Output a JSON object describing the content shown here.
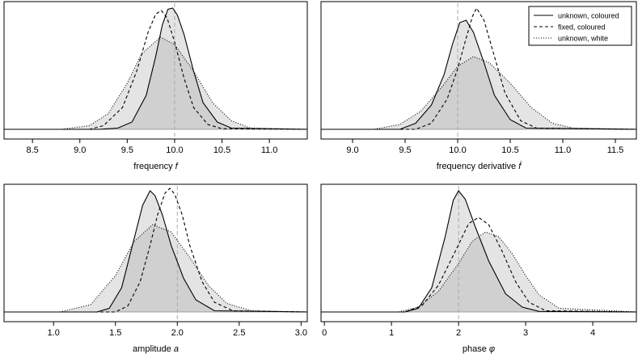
{
  "legend": {
    "entries": [
      {
        "label": "unknown, coloured",
        "style": "solid"
      },
      {
        "label": "fixed, coloured",
        "style": "dashed"
      },
      {
        "label": "unknown, white",
        "style": "dotted"
      }
    ],
    "placement": "top-right of top-right panel"
  },
  "colors": {
    "fill_unknown_coloured": "#e4e4e4",
    "fill_overlap": "#d0d0d0",
    "reference_line": "#aaaaaa"
  },
  "chart_data": [
    {
      "type": "line",
      "xlabel": "frequency",
      "xlabel_symbol": "f",
      "xlim": [
        8.2,
        11.4
      ],
      "xticks": [
        8.5,
        9.0,
        9.5,
        10.0,
        10.5,
        11.0
      ],
      "xtick_labels": [
        "8.5",
        "9.0",
        "9.5",
        "10.0",
        "10.5",
        "11.0"
      ],
      "true_value": 10.0,
      "yticks": "none",
      "series": [
        {
          "name": "unknown, coloured",
          "style": "solid",
          "x": [
            8.2,
            9.2,
            9.4,
            9.55,
            9.7,
            9.8,
            9.87,
            9.93,
            9.98,
            10.03,
            10.1,
            10.2,
            10.3,
            10.45,
            10.6,
            11.4
          ],
          "y": [
            0,
            0,
            0.01,
            0.06,
            0.28,
            0.6,
            0.86,
            0.99,
            1.0,
            0.94,
            0.78,
            0.48,
            0.22,
            0.06,
            0.01,
            0
          ]
        },
        {
          "name": "fixed, coloured",
          "style": "dashed",
          "x": [
            8.2,
            9.1,
            9.25,
            9.45,
            9.6,
            9.72,
            9.8,
            9.86,
            9.92,
            10.0,
            10.1,
            10.2,
            10.35,
            10.5,
            11.4
          ],
          "y": [
            0,
            0,
            0.03,
            0.18,
            0.48,
            0.8,
            0.95,
            0.98,
            0.92,
            0.72,
            0.42,
            0.18,
            0.04,
            0.005,
            0
          ]
        },
        {
          "name": "unknown, white",
          "style": "dotted",
          "x": [
            8.2,
            8.8,
            9.1,
            9.3,
            9.5,
            9.65,
            9.85,
            10.0,
            10.2,
            10.4,
            10.6,
            10.8,
            11.4
          ],
          "y": [
            0,
            0,
            0.03,
            0.13,
            0.38,
            0.62,
            0.76,
            0.7,
            0.48,
            0.22,
            0.07,
            0.01,
            0
          ]
        }
      ]
    },
    {
      "type": "line",
      "xlabel": "frequency derivative",
      "xlabel_symbol": "ḟ",
      "xlim": [
        8.7,
        11.7
      ],
      "xticks": [
        9.0,
        9.5,
        10.0,
        10.5,
        11.0,
        11.5
      ],
      "xtick_labels": [
        "9.0",
        "9.5",
        "10.0",
        "10.5",
        "11.0",
        "11.5"
      ],
      "true_value": 10.0,
      "yticks": "none",
      "series": [
        {
          "name": "unknown, coloured",
          "style": "solid",
          "x": [
            8.7,
            9.45,
            9.6,
            9.75,
            9.87,
            9.95,
            10.02,
            10.08,
            10.15,
            10.25,
            10.35,
            10.5,
            10.65,
            11.7
          ],
          "y": [
            0,
            0,
            0.05,
            0.2,
            0.45,
            0.7,
            0.88,
            0.9,
            0.8,
            0.55,
            0.28,
            0.08,
            0.01,
            0
          ]
        },
        {
          "name": "fixed, coloured",
          "style": "dashed",
          "x": [
            8.7,
            9.6,
            9.75,
            9.9,
            10.0,
            10.08,
            10.14,
            10.18,
            10.25,
            10.35,
            10.45,
            10.6,
            10.75,
            11.7
          ],
          "y": [
            0,
            0,
            0.05,
            0.25,
            0.5,
            0.75,
            0.93,
            1.0,
            0.9,
            0.6,
            0.3,
            0.07,
            0.01,
            0
          ]
        },
        {
          "name": "unknown, white",
          "style": "dotted",
          "x": [
            8.7,
            9.2,
            9.45,
            9.65,
            9.85,
            10.0,
            10.15,
            10.3,
            10.5,
            10.7,
            10.9,
            11.1,
            11.7
          ],
          "y": [
            0,
            0,
            0.04,
            0.15,
            0.35,
            0.52,
            0.6,
            0.55,
            0.38,
            0.18,
            0.05,
            0.01,
            0
          ]
        }
      ]
    },
    {
      "type": "line",
      "xlabel": "amplitude",
      "xlabel_symbol": "a",
      "xlim": [
        0.6,
        3.05
      ],
      "xticks": [
        1.0,
        1.5,
        2.0,
        2.5,
        3.0
      ],
      "xtick_labels": [
        "1.0",
        "1.5",
        "2.0",
        "2.5",
        "3.0"
      ],
      "true_value": 2.0,
      "yticks": "none",
      "series": [
        {
          "name": "unknown, coloured",
          "style": "solid",
          "x": [
            0.6,
            1.35,
            1.45,
            1.55,
            1.65,
            1.72,
            1.78,
            1.82,
            1.88,
            1.95,
            2.05,
            2.15,
            2.3,
            3.05
          ],
          "y": [
            0,
            0,
            0.03,
            0.2,
            0.6,
            0.88,
            1.0,
            0.96,
            0.8,
            0.55,
            0.28,
            0.1,
            0.01,
            0
          ]
        },
        {
          "name": "fixed, coloured",
          "style": "dashed",
          "x": [
            0.6,
            1.5,
            1.6,
            1.7,
            1.78,
            1.84,
            1.9,
            1.94,
            1.98,
            2.04,
            2.1,
            2.2,
            2.3,
            2.45,
            3.05
          ],
          "y": [
            0,
            0,
            0.05,
            0.25,
            0.55,
            0.8,
            0.98,
            1.02,
            0.97,
            0.8,
            0.55,
            0.25,
            0.08,
            0.01,
            0
          ]
        },
        {
          "name": "unknown, white",
          "style": "dotted",
          "x": [
            0.6,
            1.05,
            1.3,
            1.5,
            1.65,
            1.8,
            1.95,
            2.1,
            2.25,
            2.4,
            2.6,
            3.05
          ],
          "y": [
            0,
            0,
            0.06,
            0.3,
            0.58,
            0.72,
            0.66,
            0.45,
            0.22,
            0.07,
            0.01,
            0
          ]
        }
      ]
    },
    {
      "type": "line",
      "xlabel": "phase",
      "xlabel_symbol": "φ",
      "xlim": [
        -0.05,
        4.65
      ],
      "xticks": [
        0,
        1,
        2,
        3,
        4
      ],
      "xtick_labels": [
        "0",
        "1",
        "2",
        "3",
        "4"
      ],
      "true_value": 2.0,
      "yticks": "none",
      "series": [
        {
          "name": "unknown, coloured",
          "style": "solid",
          "x": [
            -0.05,
            1.2,
            1.4,
            1.6,
            1.8,
            1.92,
            2.0,
            2.1,
            2.25,
            2.45,
            2.7,
            2.95,
            3.2,
            4.65
          ],
          "y": [
            0,
            0,
            0.03,
            0.2,
            0.62,
            0.92,
            1.0,
            0.93,
            0.7,
            0.42,
            0.15,
            0.04,
            0.005,
            0
          ]
        },
        {
          "name": "fixed, coloured",
          "style": "dashed",
          "x": [
            -0.05,
            1.2,
            1.45,
            1.7,
            1.95,
            2.15,
            2.3,
            2.45,
            2.65,
            2.85,
            3.05,
            3.3,
            4.65
          ],
          "y": [
            0,
            0,
            0.05,
            0.22,
            0.5,
            0.73,
            0.78,
            0.72,
            0.5,
            0.25,
            0.08,
            0.01,
            0
          ]
        },
        {
          "name": "unknown, white",
          "style": "dotted",
          "x": [
            -0.05,
            1.1,
            1.4,
            1.7,
            2.0,
            2.2,
            2.4,
            2.6,
            2.8,
            3.0,
            3.2,
            3.5,
            4.65
          ],
          "y": [
            0,
            0,
            0.04,
            0.17,
            0.4,
            0.58,
            0.66,
            0.62,
            0.48,
            0.3,
            0.14,
            0.03,
            0
          ]
        }
      ]
    }
  ]
}
